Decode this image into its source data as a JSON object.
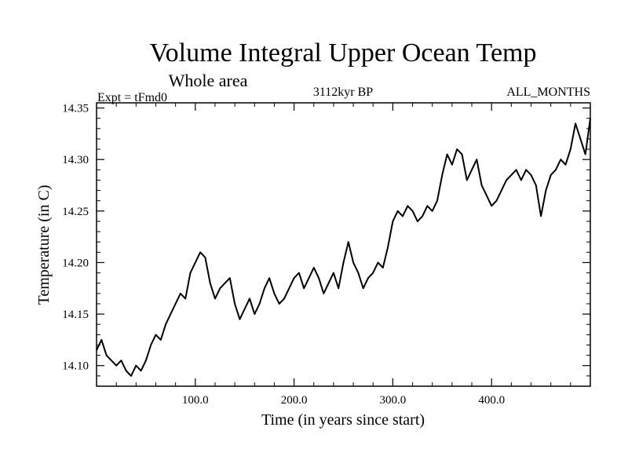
{
  "chart_data": {
    "type": "line",
    "title": "Volume Integral Upper Ocean Temp",
    "subtitle": "Whole area",
    "experiment_label": "Expt = tFmd0",
    "period_label": "3112kyr BP",
    "months_label": "ALL_MONTHS",
    "xlabel": "Time (in years since start)",
    "ylabel": "Temperature (in C)",
    "xlim": [
      0,
      500
    ],
    "ylim": [
      14.08,
      14.355
    ],
    "xticks": [
      100,
      200,
      300,
      400
    ],
    "xtick_labels": [
      "100.0",
      "200.0",
      "300.0",
      "400.0"
    ],
    "yticks": [
      14.1,
      14.15,
      14.2,
      14.25,
      14.3,
      14.35
    ],
    "ytick_labels": [
      "14.10",
      "14.15",
      "14.20",
      "14.25",
      "14.30",
      "14.35"
    ],
    "grid": false,
    "series": [
      {
        "name": "Temperature",
        "x": [
          0,
          5,
          10,
          15,
          20,
          25,
          30,
          35,
          40,
          45,
          50,
          55,
          60,
          65,
          70,
          75,
          80,
          85,
          90,
          95,
          100,
          105,
          110,
          115,
          120,
          125,
          130,
          135,
          140,
          145,
          150,
          155,
          160,
          165,
          170,
          175,
          180,
          185,
          190,
          195,
          200,
          205,
          210,
          215,
          220,
          225,
          230,
          235,
          240,
          245,
          250,
          255,
          260,
          265,
          270,
          275,
          280,
          285,
          290,
          295,
          300,
          305,
          310,
          315,
          320,
          325,
          330,
          335,
          340,
          345,
          350,
          355,
          360,
          365,
          370,
          375,
          380,
          385,
          390,
          395,
          400,
          405,
          410,
          415,
          420,
          425,
          430,
          435,
          440,
          445,
          450,
          455,
          460,
          465,
          470,
          475,
          480,
          485,
          490,
          495,
          500
        ],
        "values": [
          14.115,
          14.125,
          14.11,
          14.105,
          14.1,
          14.105,
          14.095,
          14.09,
          14.1,
          14.095,
          14.105,
          14.12,
          14.13,
          14.125,
          14.14,
          14.15,
          14.16,
          14.17,
          14.165,
          14.19,
          14.2,
          14.21,
          14.205,
          14.18,
          14.165,
          14.175,
          14.18,
          14.185,
          14.16,
          14.145,
          14.155,
          14.165,
          14.15,
          14.16,
          14.175,
          14.185,
          14.17,
          14.16,
          14.165,
          14.175,
          14.185,
          14.19,
          14.175,
          14.185,
          14.195,
          14.185,
          14.17,
          14.18,
          14.19,
          14.175,
          14.2,
          14.22,
          14.2,
          14.19,
          14.175,
          14.185,
          14.19,
          14.2,
          14.195,
          14.215,
          14.24,
          14.25,
          14.245,
          14.255,
          14.25,
          14.24,
          14.245,
          14.255,
          14.25,
          14.26,
          14.285,
          14.305,
          14.295,
          14.31,
          14.305,
          14.28,
          14.29,
          14.3,
          14.275,
          14.265,
          14.255,
          14.26,
          14.27,
          14.28,
          14.285,
          14.29,
          14.28,
          14.29,
          14.285,
          14.275,
          14.245,
          14.27,
          14.285,
          14.29,
          14.3,
          14.295,
          14.31,
          14.335,
          14.32,
          14.305,
          14.34
        ]
      }
    ]
  }
}
